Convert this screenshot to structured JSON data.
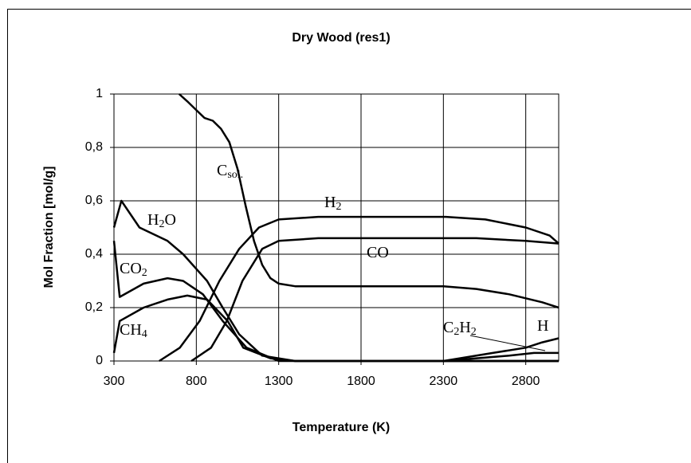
{
  "chart_data": {
    "type": "line",
    "title": "Dry Wood (res1)",
    "x_label": "Temperature (K)",
    "y_label": "Mol Fraction [mol/g]",
    "xlim": [
      300,
      3000
    ],
    "xticks": [
      300,
      800,
      1300,
      1800,
      2300,
      2800
    ],
    "ylim": [
      0,
      1
    ],
    "yticks": [
      0,
      {
        "value": 0.2,
        "label": "0,2"
      },
      {
        "value": 0.4,
        "label": "0,4"
      },
      {
        "value": 0.6,
        "label": "0,6"
      },
      {
        "value": 0.8,
        "label": "0,8"
      },
      1
    ],
    "grid": true,
    "series": [
      {
        "label": [
          {
            "text": "C"
          },
          {
            "text": "sol.",
            "sub": true
          }
        ],
        "color": "#000000",
        "x": [
          696,
          750,
          800,
          850,
          900,
          950,
          1000,
          1050,
          1100,
          1150,
          1200,
          1250,
          1300,
          1400,
          2300,
          2500,
          2700,
          2900,
          3000
        ],
        "values": [
          1,
          0.97,
          0.94,
          0.91,
          0.9,
          0.87,
          0.82,
          0.72,
          0.58,
          0.45,
          0.36,
          0.31,
          0.29,
          0.28,
          0.28,
          0.27,
          0.25,
          0.22,
          0.2
        ]
      },
      {
        "label": [
          {
            "text": "H"
          },
          {
            "text": "2",
            "sub": true
          },
          {
            "text": "O"
          }
        ],
        "color": "#000000",
        "x": [
          300,
          345,
          455,
          625,
          720,
          865,
          960,
          1060,
          1200,
          1400,
          3000
        ],
        "values": [
          0.5,
          0.6,
          0.5,
          0.45,
          0.4,
          0.3,
          0.2,
          0.1,
          0.02,
          0,
          0
        ]
      },
      {
        "label": [
          {
            "text": "CO"
          },
          {
            "text": "2",
            "sub": true
          }
        ],
        "color": "#000000",
        "x": [
          300,
          335,
          480,
          625,
          720,
          840,
          960,
          1105,
          1300,
          3000
        ],
        "values": [
          0.45,
          0.24,
          0.29,
          0.31,
          0.3,
          0.25,
          0.15,
          0.05,
          0,
          0
        ]
      },
      {
        "label": [
          {
            "text": "CH"
          },
          {
            "text": "4",
            "sub": true
          }
        ],
        "color": "#000000",
        "x": [
          300,
          335,
          480,
          625,
          745,
          865,
          990,
          1085,
          1250,
          1400,
          3000
        ],
        "values": [
          0.03,
          0.15,
          0.2,
          0.23,
          0.245,
          0.23,
          0.15,
          0.05,
          0.01,
          0,
          0
        ]
      },
      {
        "label": [
          {
            "text": "H"
          },
          {
            "text": "2",
            "sub": true
          }
        ],
        "color": "#000000",
        "x": [
          575,
          700,
          820,
          940,
          1060,
          1180,
          1300,
          1540,
          2315,
          2555,
          2800,
          2945,
          3000
        ],
        "values": [
          0,
          0.05,
          0.15,
          0.3,
          0.42,
          0.5,
          0.53,
          0.54,
          0.54,
          0.53,
          0.5,
          0.47,
          0.44
        ]
      },
      {
        "label": [
          {
            "text": "CO"
          }
        ],
        "color": "#000000",
        "x": [
          770,
          890,
          985,
          1080,
          1200,
          1300,
          1540,
          2500,
          2800,
          3000
        ],
        "values": [
          0,
          0.05,
          0.15,
          0.3,
          0.42,
          0.45,
          0.46,
          0.46,
          0.45,
          0.44
        ]
      },
      {
        "label": [
          {
            "text": "C"
          },
          {
            "text": "2",
            "sub": true
          },
          {
            "text": "H"
          },
          {
            "text": "2",
            "sub": true
          }
        ],
        "color": "#000000",
        "x": [
          2300,
          2500,
          2700,
          2850,
          3000
        ],
        "values": [
          0,
          0.01,
          0.02,
          0.03,
          0.03
        ]
      },
      {
        "label": [
          {
            "text": "H"
          }
        ],
        "color": "#000000",
        "x": [
          2300,
          2400,
          2600,
          2800,
          2900,
          3000
        ],
        "values": [
          0,
          0.01,
          0.03,
          0.05,
          0.07,
          0.085
        ]
      }
    ]
  }
}
